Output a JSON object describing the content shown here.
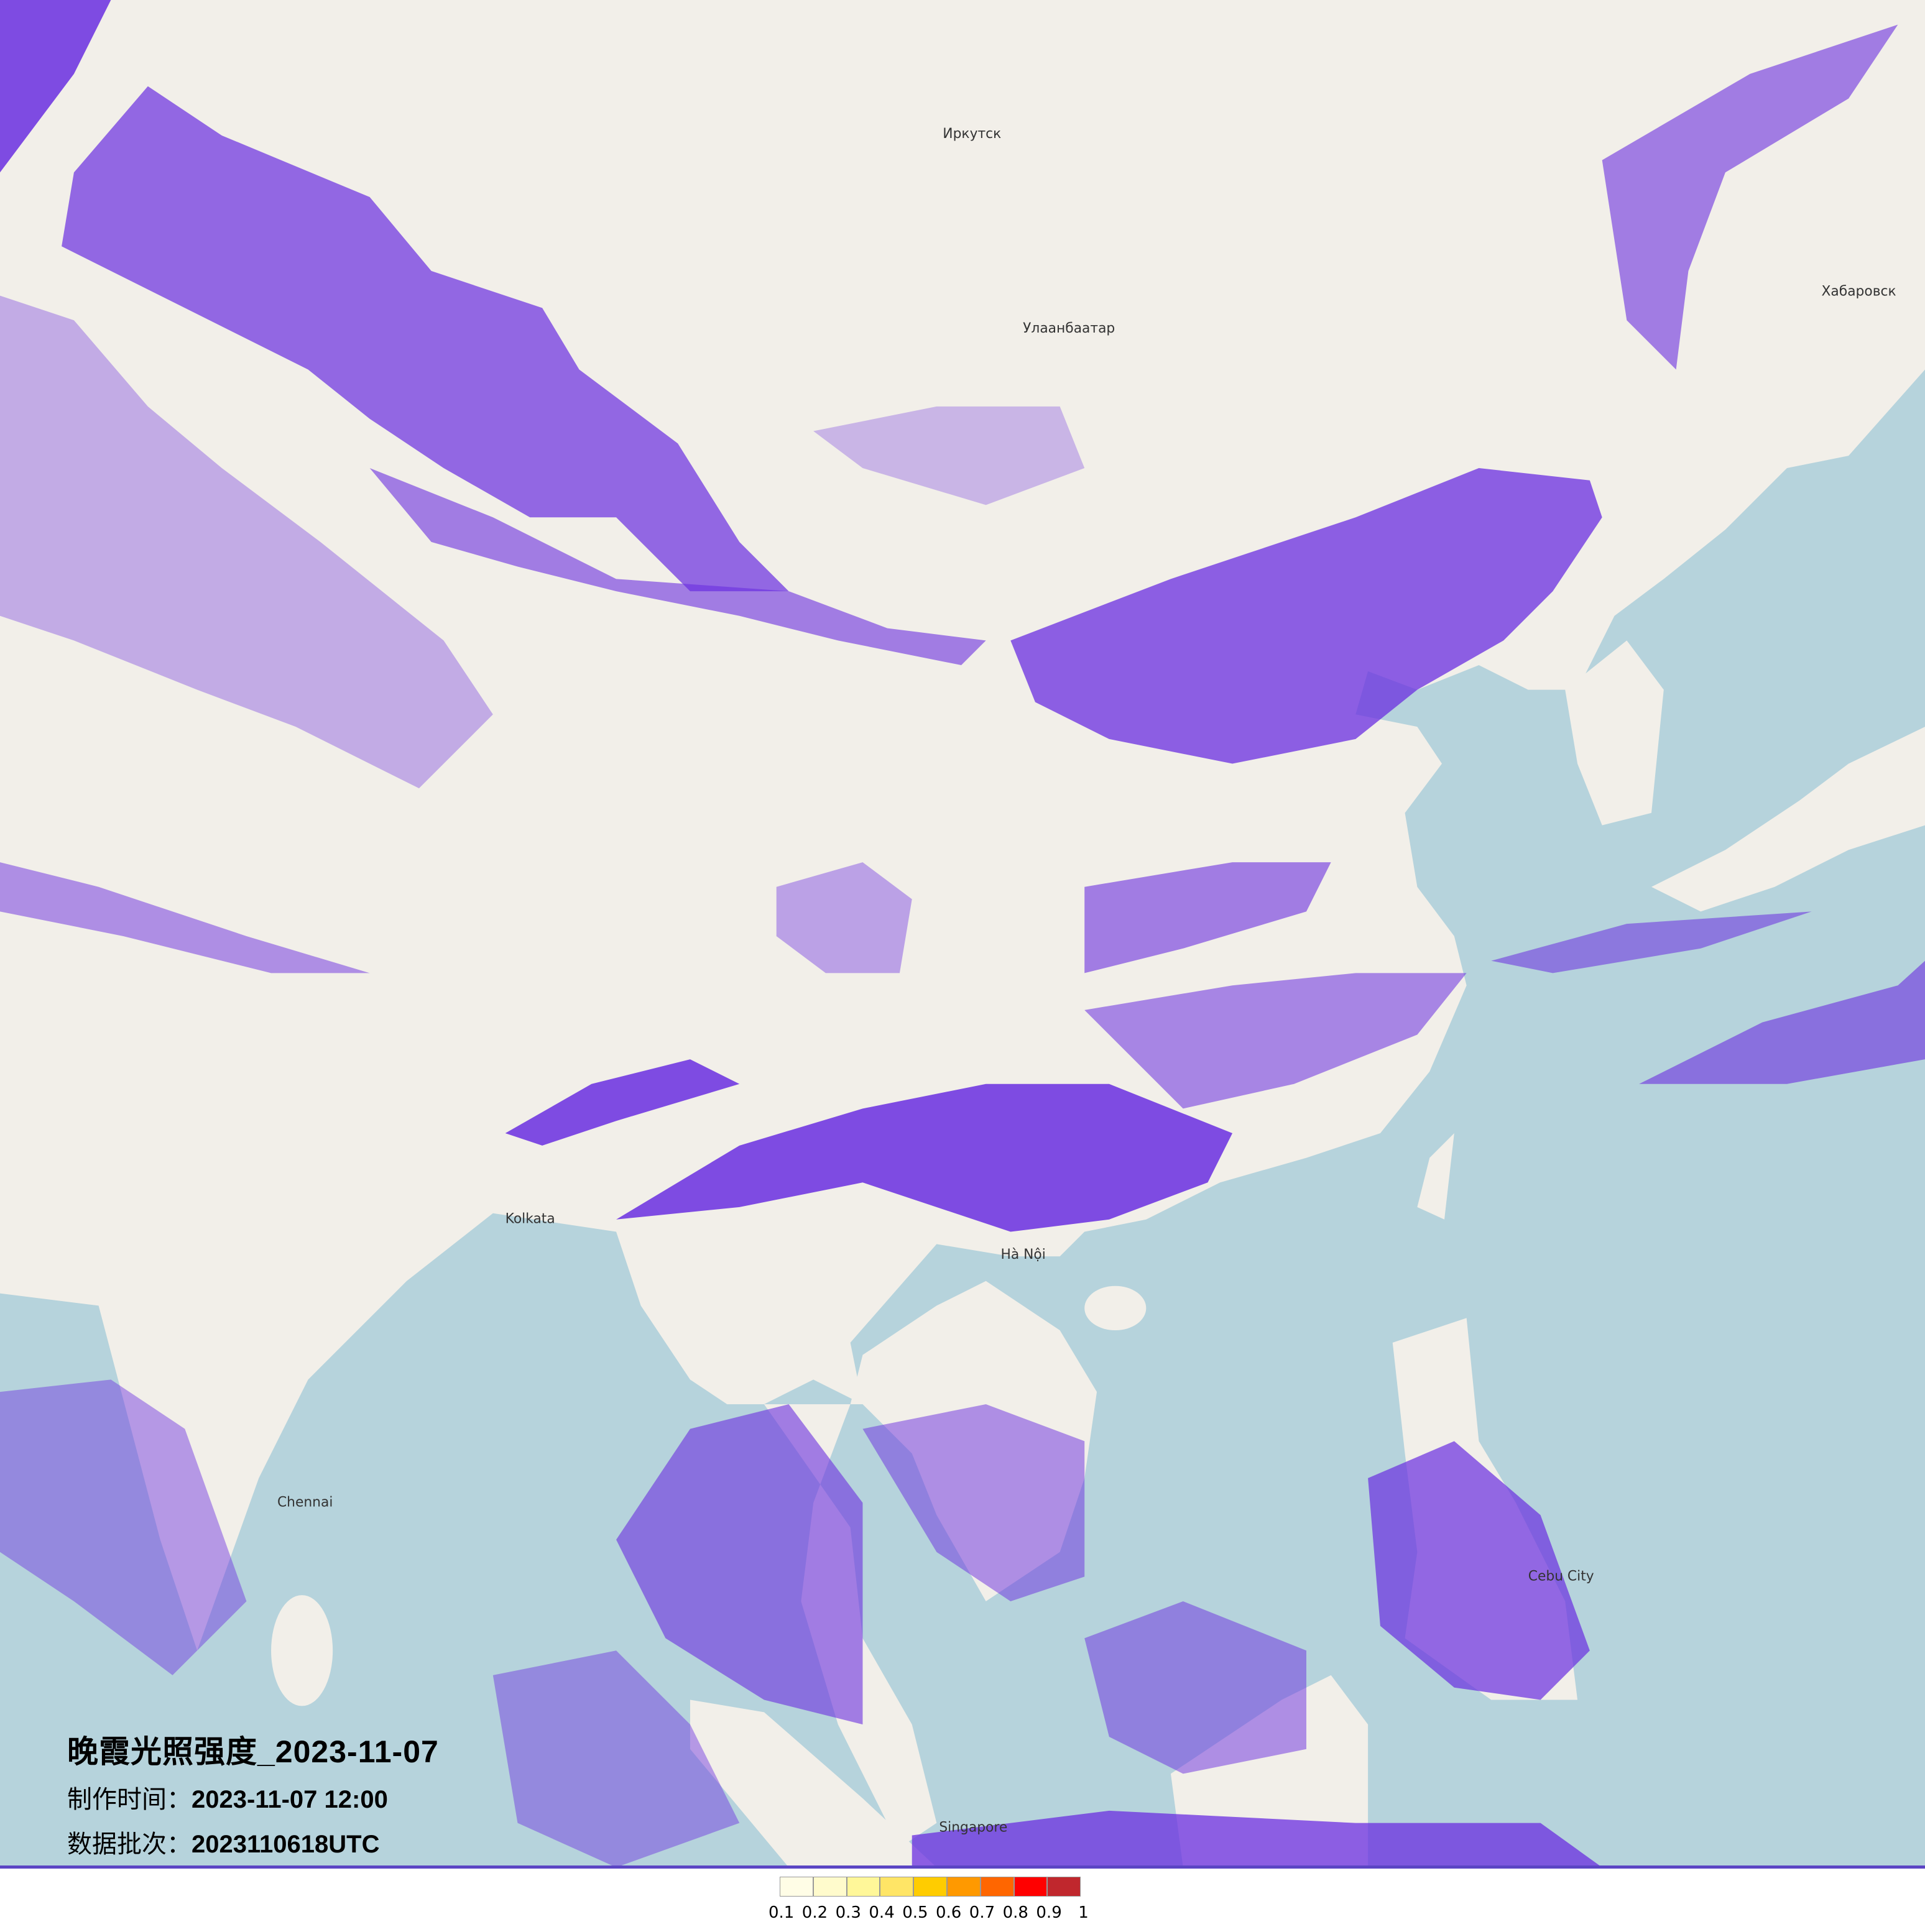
{
  "title": {
    "main": "晚霞光照强度_2023-11-07",
    "production_label": "制作时间：",
    "production_time": "2023-11-07 12:00",
    "batch_label": "数据批次：",
    "batch_value": "2023110618UTC"
  },
  "map": {
    "land_color": "#f2efe9",
    "ocean_color": "#b6d3dc",
    "overlay_color": "#6a2ee0",
    "cities": [
      "Иркутск",
      "Улаанбаатар",
      "Хабаровск",
      "Kolkata",
      "Chennai",
      "Singapore",
      "Cebu City",
      "Hà Nội"
    ]
  },
  "legend": {
    "colors": [
      "#fffde6",
      "#fffbcc",
      "#fff799",
      "#ffe566",
      "#ffcc00",
      "#ff9900",
      "#ff6600",
      "#ff0000",
      "#c0272d"
    ],
    "labels": [
      "0.1",
      "0.2",
      "0.3",
      "0.4",
      "0.5",
      "0.6",
      "0.7",
      "0.8",
      "0.9",
      "1"
    ]
  }
}
